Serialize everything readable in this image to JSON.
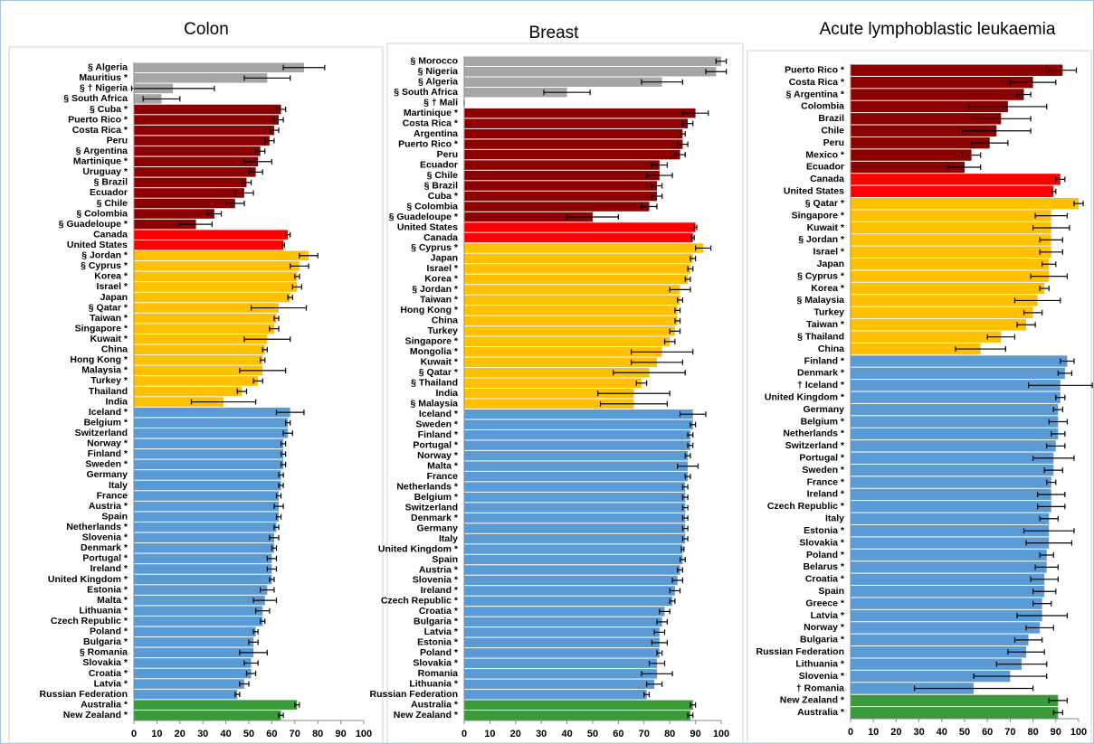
{
  "chart_data": [
    {
      "type": "barh",
      "title": "Colon",
      "categories": [
        "§ Algeria",
        "Mauritius *",
        "§ † Nigeria",
        "§ South Africa",
        "§ Cuba *",
        "Puerto Rico *",
        "Costa Rica *",
        "Peru",
        "§ Argentina",
        "Martinique *",
        "Uruguay *",
        "§ Brazil",
        "Ecuador",
        "§ Chile",
        "§ Colombia",
        "§ Guadeloupe *",
        "Canada",
        "United States",
        "§ Jordan *",
        "§ Cyprus *",
        "Korea *",
        "Israel *",
        "Japan",
        "§ Qatar *",
        "Taiwan *",
        "Singapore *",
        "Kuwait *",
        "China",
        "Hong Kong *",
        "Malaysia *",
        "Turkey *",
        "Thailand",
        "India",
        "Iceland *",
        "Belgium *",
        "Switzerland",
        "Norway *",
        "Finland *",
        "Sweden *",
        "Germany",
        "Italy",
        "France",
        "Austria *",
        "Spain",
        "Netherlands *",
        "Slovenia *",
        "Denmark *",
        "Portugal *",
        "Ireland *",
        "United Kingdom *",
        "Estonia *",
        "Malta *",
        "Lithuania *",
        "Czech Republic *",
        "Poland *",
        "Bulgaria *",
        "§ Romania",
        "Slovakia *",
        "Croatia *",
        "Latvia *",
        "Russian Federation",
        "Australia *",
        "New Zealand *"
      ],
      "values": [
        74,
        58,
        17,
        12,
        64,
        63,
        61,
        59,
        55,
        54,
        53,
        49,
        48,
        44,
        35,
        27,
        67,
        65,
        76,
        72,
        71,
        71,
        68,
        63,
        62,
        61,
        58,
        57,
        56,
        56,
        54,
        47,
        39,
        68,
        67,
        67,
        65,
        65,
        65,
        64,
        64,
        63,
        63,
        63,
        62,
        61,
        61,
        60,
        60,
        60,
        58,
        57,
        56,
        56,
        53,
        52,
        52,
        51,
        51,
        48,
        45,
        71,
        64
      ],
      "errors": [
        9,
        10,
        18,
        8,
        2,
        2,
        2,
        2,
        2,
        6,
        3,
        2,
        4,
        4,
        3,
        7,
        1,
        0.5,
        4,
        4,
        1,
        2,
        1,
        12,
        1,
        2,
        10,
        1,
        1,
        10,
        2,
        2,
        14,
        6,
        1,
        2,
        1,
        1,
        1,
        1,
        1,
        1,
        2,
        1,
        1,
        2,
        1,
        2,
        2,
        1,
        3,
        5,
        3,
        1,
        1,
        2,
        6,
        3,
        2,
        2,
        1,
        1,
        1
      ],
      "colors": [
        "#a6a6a6",
        "#a6a6a6",
        "#a6a6a6",
        "#a6a6a6",
        "#8b0000",
        "#8b0000",
        "#8b0000",
        "#8b0000",
        "#8b0000",
        "#8b0000",
        "#8b0000",
        "#8b0000",
        "#8b0000",
        "#8b0000",
        "#8b0000",
        "#8b0000",
        "#ff0000",
        "#ff0000",
        "#ffc000",
        "#ffc000",
        "#ffc000",
        "#ffc000",
        "#ffc000",
        "#ffc000",
        "#ffc000",
        "#ffc000",
        "#ffc000",
        "#ffc000",
        "#ffc000",
        "#ffc000",
        "#ffc000",
        "#ffc000",
        "#ffc000",
        "#5b9bd5",
        "#5b9bd5",
        "#5b9bd5",
        "#5b9bd5",
        "#5b9bd5",
        "#5b9bd5",
        "#5b9bd5",
        "#5b9bd5",
        "#5b9bd5",
        "#5b9bd5",
        "#5b9bd5",
        "#5b9bd5",
        "#5b9bd5",
        "#5b9bd5",
        "#5b9bd5",
        "#5b9bd5",
        "#5b9bd5",
        "#5b9bd5",
        "#5b9bd5",
        "#5b9bd5",
        "#5b9bd5",
        "#5b9bd5",
        "#5b9bd5",
        "#5b9bd5",
        "#5b9bd5",
        "#5b9bd5",
        "#5b9bd5",
        "#5b9bd5",
        "#3a9a3a",
        "#3a9a3a"
      ],
      "xlim": [
        0,
        100
      ],
      "xticks": [
        0,
        10,
        20,
        30,
        40,
        50,
        60,
        70,
        80,
        90,
        100
      ]
    },
    {
      "type": "barh",
      "title": "Breast",
      "categories": [
        "§ Morocco",
        "§ Nigeria",
        "§ Algeria",
        "§ South Africa",
        "§ † Mali",
        "Martinique *",
        "Costa Rica *",
        "Argentina",
        "Puerto Rico *",
        "Peru",
        "Ecuador",
        "§ Chile",
        "§ Brazil",
        "Cuba *",
        "§ Colombia",
        "§ Guadeloupe *",
        "United States",
        "Canada",
        "§ Cyprus *",
        "Japan",
        "Israel *",
        "Korea *",
        "§ Jordan *",
        "Taiwan *",
        "Hong Kong *",
        "China",
        "Turkey",
        "Singapore *",
        "Mongolia *",
        "Kuwait *",
        "§ Qatar *",
        "§ Thailand",
        "India",
        "§ Malaysia",
        "Iceland *",
        "Sweden *",
        "Finland *",
        "Portugal *",
        "Norway *",
        "Malta *",
        "France",
        "Netherlands *",
        "Belgium *",
        "Switzerland",
        "Denmark *",
        "Germany",
        "Italy",
        "United Kingdom *",
        "Spain",
        "Austria *",
        "Slovenia *",
        "Ireland *",
        "Czech Republic *",
        "Croatia *",
        "Bulgaria *",
        "Latvia *",
        "Estonia *",
        "Poland *",
        "Slovakia *",
        "Romania",
        "Lithuania *",
        "Russian Federation",
        "Australia *",
        "New Zealand *"
      ],
      "values": [
        100,
        98,
        77,
        40,
        0,
        90,
        87,
        85,
        85,
        84,
        76,
        76,
        75,
        75,
        72,
        50,
        90,
        89,
        93,
        89,
        88,
        87,
        84,
        84,
        83,
        83,
        82,
        80,
        77,
        75,
        72,
        69,
        66,
        66,
        89,
        89,
        88,
        88,
        87,
        87,
        87,
        86,
        86,
        86,
        86,
        86,
        86,
        85,
        85,
        84,
        83,
        82,
        81,
        78,
        77,
        76,
        76,
        76,
        75,
        75,
        74,
        71,
        89,
        88
      ],
      "errors": [
        2,
        4,
        8,
        9,
        0,
        5,
        2,
        1,
        2,
        2,
        3,
        5,
        2,
        2,
        3,
        10,
        0.5,
        0.5,
        3,
        1,
        1,
        1,
        4,
        1,
        1,
        1,
        2,
        2,
        12,
        10,
        14,
        2,
        14,
        13,
        5,
        1,
        1,
        1,
        1,
        4,
        1,
        1,
        1,
        1,
        1,
        1,
        1,
        0.5,
        1,
        1,
        2,
        2,
        1,
        2,
        2,
        2,
        3,
        1,
        3,
        6,
        3,
        1,
        1,
        1
      ],
      "colors": [
        "#a6a6a6",
        "#a6a6a6",
        "#a6a6a6",
        "#a6a6a6",
        "#a6a6a6",
        "#8b0000",
        "#8b0000",
        "#8b0000",
        "#8b0000",
        "#8b0000",
        "#8b0000",
        "#8b0000",
        "#8b0000",
        "#8b0000",
        "#8b0000",
        "#8b0000",
        "#ff0000",
        "#ff0000",
        "#ffc000",
        "#ffc000",
        "#ffc000",
        "#ffc000",
        "#ffc000",
        "#ffc000",
        "#ffc000",
        "#ffc000",
        "#ffc000",
        "#ffc000",
        "#ffc000",
        "#ffc000",
        "#ffc000",
        "#ffc000",
        "#ffc000",
        "#ffc000",
        "#5b9bd5",
        "#5b9bd5",
        "#5b9bd5",
        "#5b9bd5",
        "#5b9bd5",
        "#5b9bd5",
        "#5b9bd5",
        "#5b9bd5",
        "#5b9bd5",
        "#5b9bd5",
        "#5b9bd5",
        "#5b9bd5",
        "#5b9bd5",
        "#5b9bd5",
        "#5b9bd5",
        "#5b9bd5",
        "#5b9bd5",
        "#5b9bd5",
        "#5b9bd5",
        "#5b9bd5",
        "#5b9bd5",
        "#5b9bd5",
        "#5b9bd5",
        "#5b9bd5",
        "#5b9bd5",
        "#5b9bd5",
        "#5b9bd5",
        "#5b9bd5",
        "#3a9a3a",
        "#3a9a3a"
      ],
      "xlim": [
        0,
        100
      ],
      "xticks": [
        0,
        10,
        20,
        30,
        40,
        50,
        60,
        70,
        80,
        90,
        100
      ]
    },
    {
      "type": "barh",
      "title": "Acute lymphoblastic leukaemia",
      "categories": [
        "Puerto Rico *",
        "Costa Rica *",
        "§ Argentina *",
        "Colombia",
        "Brazil",
        "Chile",
        "Peru",
        "Mexico *",
        "Ecuador",
        "Canada",
        "United States",
        "§ Qatar *",
        "Singapore *",
        "Kuwait *",
        "§ Jordan *",
        "Israel *",
        "Japan",
        "§ Cyprus *",
        "Korea *",
        "§ Malaysia",
        "Turkey",
        "Taiwan *",
        "§ Thailand",
        "China",
        "Finland *",
        "Denmark *",
        "† Iceland *",
        "United Kingdom *",
        "Germany",
        "Belgium *",
        "Netherlands *",
        "Switzerland *",
        "Portugal *",
        "Sweden *",
        "France *",
        "Ireland *",
        "Czech Republic *",
        "Italy",
        "Estonia *",
        "Slovakia *",
        "Poland *",
        "Belarus *",
        "Croatia *",
        "Spain",
        "Greece *",
        "Latvia *",
        "Norway *",
        "Bulgaria *",
        "Russian Federation",
        "Lithuania *",
        "Slovenia *",
        "† Romania",
        "New Zealand *",
        "Australia *"
      ],
      "values": [
        93,
        80,
        76,
        69,
        66,
        64,
        61,
        53,
        50,
        92,
        89,
        100,
        88,
        88,
        88,
        88,
        87,
        87,
        85,
        82,
        80,
        77,
        66,
        57,
        95,
        94,
        92,
        92,
        91,
        91,
        91,
        90,
        89,
        89,
        88,
        88,
        88,
        87,
        87,
        87,
        86,
        86,
        85,
        85,
        84,
        84,
        83,
        78,
        77,
        75,
        70,
        54,
        91,
        91
      ],
      "errors": [
        6,
        10,
        3,
        17,
        13,
        15,
        8,
        4,
        7,
        2,
        1,
        2,
        7,
        8,
        5,
        5,
        3,
        8,
        2,
        10,
        4,
        4,
        6,
        11,
        3,
        3,
        14,
        2,
        2,
        4,
        3,
        4,
        9,
        4,
        2,
        6,
        6,
        4,
        11,
        10,
        3,
        5,
        6,
        5,
        4,
        11,
        6,
        6,
        8,
        11,
        16,
        26,
        4,
        2
      ],
      "colors": [
        "#8b0000",
        "#8b0000",
        "#8b0000",
        "#8b0000",
        "#8b0000",
        "#8b0000",
        "#8b0000",
        "#8b0000",
        "#8b0000",
        "#ff0000",
        "#ff0000",
        "#ffc000",
        "#ffc000",
        "#ffc000",
        "#ffc000",
        "#ffc000",
        "#ffc000",
        "#ffc000",
        "#ffc000",
        "#ffc000",
        "#ffc000",
        "#ffc000",
        "#ffc000",
        "#ffc000",
        "#5b9bd5",
        "#5b9bd5",
        "#5b9bd5",
        "#5b9bd5",
        "#5b9bd5",
        "#5b9bd5",
        "#5b9bd5",
        "#5b9bd5",
        "#5b9bd5",
        "#5b9bd5",
        "#5b9bd5",
        "#5b9bd5",
        "#5b9bd5",
        "#5b9bd5",
        "#5b9bd5",
        "#5b9bd5",
        "#5b9bd5",
        "#5b9bd5",
        "#5b9bd5",
        "#5b9bd5",
        "#5b9bd5",
        "#5b9bd5",
        "#5b9bd5",
        "#5b9bd5",
        "#5b9bd5",
        "#5b9bd5",
        "#5b9bd5",
        "#5b9bd5",
        "#3a9a3a",
        "#3a9a3a"
      ],
      "xlim": [
        0,
        100
      ],
      "xticks": [
        0,
        10,
        20,
        30,
        40,
        50,
        60,
        70,
        80,
        90,
        100
      ]
    }
  ]
}
